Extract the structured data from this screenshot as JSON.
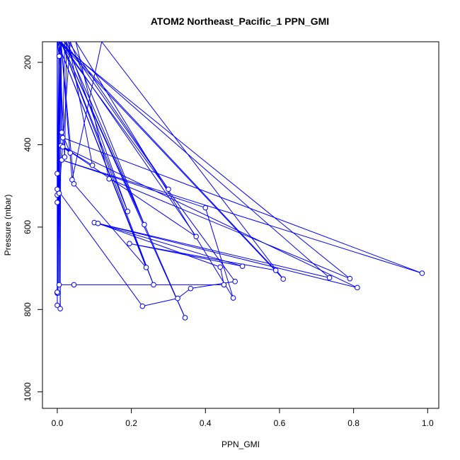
{
  "chart_data": {
    "type": "line",
    "title": "ATOM2 Northeast_Pacific_1 PPN_GMI",
    "xlabel": "PPN_GMI",
    "ylabel": "Pressure (mbar)",
    "xlim": [
      -0.04,
      1.03
    ],
    "ylim": [
      1040,
      150
    ],
    "y_reversed": true,
    "x_ticks": [
      0.0,
      0.2,
      0.4,
      0.6,
      0.8,
      1.0
    ],
    "x_tick_labels": [
      "0.0",
      "0.2",
      "0.4",
      "0.6",
      "0.8",
      "1.0"
    ],
    "y_ticks": [
      200,
      400,
      600,
      800,
      1000
    ],
    "y_tick_labels": [
      "200",
      "400",
      "600",
      "800",
      "1000"
    ],
    "grid": false,
    "series_color": "#0000ff",
    "marker": "open-circle",
    "points": [
      {
        "x": 0.0,
        "y": 150
      },
      {
        "x": 0.005,
        "y": 185
      },
      {
        "x": 0.01,
        "y": 150
      },
      {
        "x": 0.012,
        "y": 370
      },
      {
        "x": 0.035,
        "y": 420
      },
      {
        "x": 0.01,
        "y": 402
      },
      {
        "x": 0.095,
        "y": 450
      },
      {
        "x": 0.03,
        "y": 150
      },
      {
        "x": 0.3,
        "y": 508
      },
      {
        "x": 0.02,
        "y": 150
      },
      {
        "x": 0.015,
        "y": 383
      },
      {
        "x": 0.985,
        "y": 712
      },
      {
        "x": 0.012,
        "y": 437
      },
      {
        "x": 0.4,
        "y": 553
      },
      {
        "x": 0.475,
        "y": 772
      },
      {
        "x": 0.05,
        "y": 150
      },
      {
        "x": 0.14,
        "y": 483
      },
      {
        "x": 0.79,
        "y": 725
      },
      {
        "x": 0.0,
        "y": 150
      },
      {
        "x": 0.0,
        "y": 470
      },
      {
        "x": 0.0,
        "y": 522
      },
      {
        "x": 0.005,
        "y": 150
      },
      {
        "x": 0.02,
        "y": 430
      },
      {
        "x": 0.025,
        "y": 150
      },
      {
        "x": 0.19,
        "y": 562
      },
      {
        "x": 0.01,
        "y": 150
      },
      {
        "x": 0.04,
        "y": 485
      },
      {
        "x": 0.12,
        "y": 150
      },
      {
        "x": 0.61,
        "y": 726
      },
      {
        "x": 0.005,
        "y": 150
      },
      {
        "x": 0.005,
        "y": 518
      },
      {
        "x": 0.035,
        "y": 150
      },
      {
        "x": 0.235,
        "y": 594
      },
      {
        "x": 0.01,
        "y": 150
      },
      {
        "x": 0.0,
        "y": 540
      },
      {
        "x": 0.01,
        "y": 150
      },
      {
        "x": 0.375,
        "y": 623
      },
      {
        "x": 0.015,
        "y": 405
      },
      {
        "x": 0.81,
        "y": 747
      },
      {
        "x": 0.1,
        "y": 589
      },
      {
        "x": 0.5,
        "y": 695
      },
      {
        "x": 0.195,
        "y": 640
      },
      {
        "x": 0.59,
        "y": 705
      },
      {
        "x": 0.01,
        "y": 150
      },
      {
        "x": 0.045,
        "y": 495
      },
      {
        "x": 0.24,
        "y": 698
      },
      {
        "x": 0.0,
        "y": 150
      },
      {
        "x": 0.0,
        "y": 508
      },
      {
        "x": 0.23,
        "y": 792
      },
      {
        "x": 0.325,
        "y": 773
      },
      {
        "x": 0.36,
        "y": 749
      },
      {
        "x": 0.48,
        "y": 732
      },
      {
        "x": 0.005,
        "y": 150
      },
      {
        "x": 0.005,
        "y": 740
      },
      {
        "x": 0.045,
        "y": 740
      },
      {
        "x": 0.45,
        "y": 740
      },
      {
        "x": 0.44,
        "y": 697
      },
      {
        "x": 0.11,
        "y": 591
      },
      {
        "x": 0.735,
        "y": 723
      },
      {
        "x": 0.005,
        "y": 150
      },
      {
        "x": 0.0,
        "y": 760
      },
      {
        "x": 0.01,
        "y": 150
      },
      {
        "x": 0.26,
        "y": 740
      },
      {
        "x": 0.0,
        "y": 150
      },
      {
        "x": 0.0,
        "y": 760
      },
      {
        "x": 0.005,
        "y": 150
      },
      {
        "x": 0.002,
        "y": 760
      },
      {
        "x": 0.0,
        "y": 150
      },
      {
        "x": 0.0,
        "y": 790
      },
      {
        "x": 0.005,
        "y": 150
      },
      {
        "x": 0.0,
        "y": 758
      },
      {
        "x": 0.005,
        "y": 150
      },
      {
        "x": 0.008,
        "y": 798
      },
      {
        "x": 0.01,
        "y": 150
      },
      {
        "x": 0.345,
        "y": 820
      },
      {
        "x": 0.02,
        "y": 150
      }
    ]
  }
}
